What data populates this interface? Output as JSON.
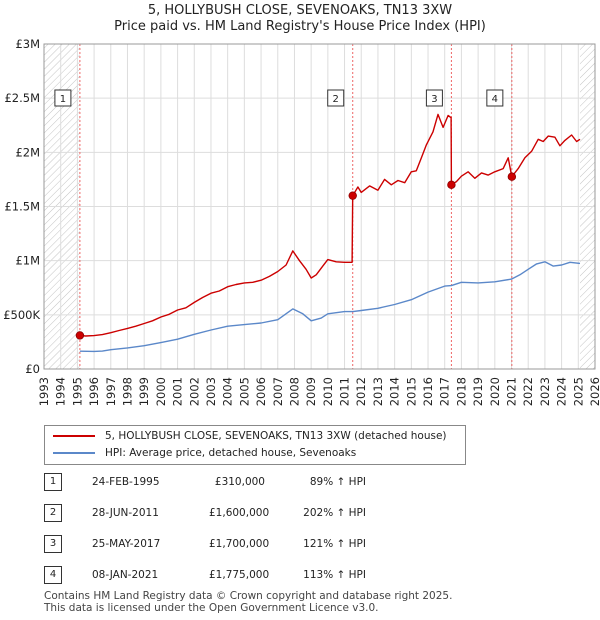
{
  "title_line1": "5, HOLLYBUSH CLOSE, SEVENOAKS, TN13 3XW",
  "title_line2": "Price paid vs. HM Land Registry's House Price Index (HPI)",
  "colors": {
    "property": "#cc0000",
    "hpi": "#5b88c9",
    "marker_line": "#ee6666",
    "grid": "#dddddd",
    "hatch": "#bbbbbb"
  },
  "chart_data": {
    "type": "line",
    "x_range": [
      1993,
      2026
    ],
    "y_range": [
      0,
      3000000
    ],
    "y_ticks": [
      {
        "value": 0,
        "label": "£0"
      },
      {
        "value": 500000,
        "label": "£500K"
      },
      {
        "value": 1000000,
        "label": "£1M"
      },
      {
        "value": 1500000,
        "label": "£1.5M"
      },
      {
        "value": 2000000,
        "label": "£2M"
      },
      {
        "value": 2500000,
        "label": "£2.5M"
      },
      {
        "value": 3000000,
        "label": "£3M"
      }
    ],
    "x_ticks": [
      "1993",
      "1994",
      "1995",
      "1996",
      "1997",
      "1998",
      "1999",
      "2000",
      "2001",
      "2002",
      "2003",
      "2004",
      "2005",
      "2006",
      "2007",
      "2008",
      "2009",
      "2010",
      "2011",
      "2012",
      "2013",
      "2014",
      "2015",
      "2016",
      "2017",
      "2018",
      "2019",
      "2020",
      "2021",
      "2022",
      "2023",
      "2024",
      "2025",
      "2026"
    ],
    "hatched_ranges": [
      [
        1993,
        1995.15
      ],
      [
        2025.1,
        2026
      ]
    ],
    "series": [
      {
        "name": "5, HOLLYBUSH CLOSE, SEVENOAKS, TN13 3XW (detached house)",
        "points": [
          [
            1995.15,
            310000
          ],
          [
            1995.5,
            305000
          ],
          [
            1996,
            308000
          ],
          [
            1996.5,
            318000
          ],
          [
            1997,
            335000
          ],
          [
            1997.5,
            355000
          ],
          [
            1998,
            375000
          ],
          [
            1998.5,
            395000
          ],
          [
            1999,
            420000
          ],
          [
            1999.5,
            445000
          ],
          [
            2000,
            480000
          ],
          [
            2000.5,
            505000
          ],
          [
            2001,
            545000
          ],
          [
            2001.5,
            565000
          ],
          [
            2002,
            615000
          ],
          [
            2002.5,
            660000
          ],
          [
            2003,
            700000
          ],
          [
            2003.5,
            720000
          ],
          [
            2004,
            760000
          ],
          [
            2004.5,
            780000
          ],
          [
            2005,
            795000
          ],
          [
            2005.5,
            800000
          ],
          [
            2006,
            820000
          ],
          [
            2006.5,
            855000
          ],
          [
            2007,
            900000
          ],
          [
            2007.5,
            960000
          ],
          [
            2007.9,
            1090000
          ],
          [
            2008.3,
            1000000
          ],
          [
            2008.7,
            920000
          ],
          [
            2009,
            840000
          ],
          [
            2009.3,
            870000
          ],
          [
            2009.7,
            950000
          ],
          [
            2010,
            1010000
          ],
          [
            2010.5,
            990000
          ],
          [
            2011,
            985000
          ],
          [
            2011.45,
            985000
          ],
          [
            2011.49,
            1600000
          ],
          [
            2011.8,
            1680000
          ],
          [
            2012,
            1630000
          ],
          [
            2012.5,
            1690000
          ],
          [
            2013,
            1650000
          ],
          [
            2013.4,
            1750000
          ],
          [
            2013.8,
            1700000
          ],
          [
            2014.2,
            1740000
          ],
          [
            2014.6,
            1720000
          ],
          [
            2015,
            1820000
          ],
          [
            2015.3,
            1830000
          ],
          [
            2015.6,
            1950000
          ],
          [
            2015.9,
            2070000
          ],
          [
            2016.3,
            2190000
          ],
          [
            2016.6,
            2350000
          ],
          [
            2016.9,
            2230000
          ],
          [
            2017.2,
            2340000
          ],
          [
            2017.38,
            2320000
          ],
          [
            2017.4,
            1700000
          ],
          [
            2017.7,
            1730000
          ],
          [
            2018,
            1780000
          ],
          [
            2018.4,
            1820000
          ],
          [
            2018.8,
            1760000
          ],
          [
            2019.2,
            1810000
          ],
          [
            2019.6,
            1790000
          ],
          [
            2020,
            1820000
          ],
          [
            2020.5,
            1850000
          ],
          [
            2020.8,
            1950000
          ],
          [
            2021.02,
            1775000
          ],
          [
            2021.4,
            1850000
          ],
          [
            2021.8,
            1950000
          ],
          [
            2022.2,
            2010000
          ],
          [
            2022.6,
            2120000
          ],
          [
            2022.9,
            2100000
          ],
          [
            2023.2,
            2150000
          ],
          [
            2023.6,
            2140000
          ],
          [
            2023.9,
            2060000
          ],
          [
            2024.2,
            2110000
          ],
          [
            2024.6,
            2160000
          ],
          [
            2024.9,
            2100000
          ],
          [
            2025.1,
            2120000
          ]
        ]
      },
      {
        "name": "HPI: Average price, detached house, Sevenoaks",
        "points": [
          [
            1995.15,
            164000
          ],
          [
            1996,
            162000
          ],
          [
            1996.5,
            165000
          ],
          [
            1997,
            178000
          ],
          [
            1998,
            195000
          ],
          [
            1999,
            215000
          ],
          [
            2000,
            245000
          ],
          [
            2001,
            275000
          ],
          [
            2002,
            320000
          ],
          [
            2003,
            360000
          ],
          [
            2004,
            395000
          ],
          [
            2005,
            410000
          ],
          [
            2006,
            425000
          ],
          [
            2007,
            455000
          ],
          [
            2007.9,
            555000
          ],
          [
            2008.5,
            510000
          ],
          [
            2009,
            445000
          ],
          [
            2009.6,
            470000
          ],
          [
            2010,
            510000
          ],
          [
            2011,
            530000
          ],
          [
            2011.5,
            530000
          ],
          [
            2012,
            540000
          ],
          [
            2013,
            560000
          ],
          [
            2014,
            595000
          ],
          [
            2015,
            640000
          ],
          [
            2016,
            710000
          ],
          [
            2017,
            765000
          ],
          [
            2017.4,
            770000
          ],
          [
            2018,
            800000
          ],
          [
            2019,
            795000
          ],
          [
            2020,
            805000
          ],
          [
            2021,
            830000
          ],
          [
            2021.5,
            870000
          ],
          [
            2022,
            920000
          ],
          [
            2022.5,
            970000
          ],
          [
            2023,
            990000
          ],
          [
            2023.5,
            950000
          ],
          [
            2024,
            960000
          ],
          [
            2024.5,
            985000
          ],
          [
            2025.1,
            975000
          ]
        ]
      }
    ],
    "sales": [
      {
        "num": "1",
        "x": 1995.15,
        "price": 310000
      },
      {
        "num": "2",
        "x": 2011.49,
        "price": 1600000
      },
      {
        "num": "3",
        "x": 2017.4,
        "price": 1700000
      },
      {
        "num": "4",
        "x": 2021.02,
        "price": 1775000
      }
    ]
  },
  "legend": {
    "property_label": "5, HOLLYBUSH CLOSE, SEVENOAKS, TN13 3XW (detached house)",
    "hpi_label": "HPI: Average price, detached house, Sevenoaks"
  },
  "sales_table": [
    {
      "num": "1",
      "date": "24-FEB-1995",
      "price": "£310,000",
      "hpi": "89% ↑ HPI"
    },
    {
      "num": "2",
      "date": "28-JUN-2011",
      "price": "£1,600,000",
      "hpi": "202% ↑ HPI"
    },
    {
      "num": "3",
      "date": "25-MAY-2017",
      "price": "£1,700,000",
      "hpi": "121% ↑ HPI"
    },
    {
      "num": "4",
      "date": "08-JAN-2021",
      "price": "£1,775,000",
      "hpi": "113% ↑ HPI"
    }
  ],
  "footer_line1": "Contains HM Land Registry data © Crown copyright and database right 2025.",
  "footer_line2": "This data is licensed under the Open Government Licence v3.0."
}
